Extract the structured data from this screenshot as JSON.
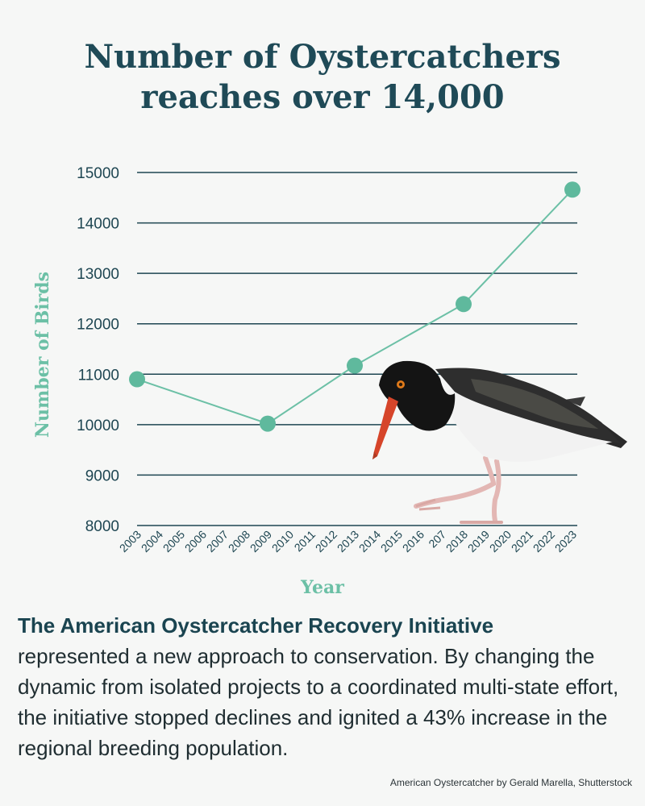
{
  "title_line1": "Number of Oystercatchers",
  "title_line2": "reaches over 14,000",
  "chart_data": {
    "type": "line",
    "ylabel": "Number of Birds",
    "xlabel": "Year",
    "ylim": [
      8000,
      15000
    ],
    "yticks": [
      8000,
      9000,
      10000,
      11000,
      12000,
      13000,
      14000,
      15000
    ],
    "x_tick_labels": [
      "2003",
      "2004",
      "2005",
      "2006",
      "2007",
      "2008",
      "2009",
      "2010",
      "2011",
      "2012",
      "2013",
      "2014",
      "2015",
      "2016",
      "207",
      "2018",
      "2019",
      "2020",
      "2021",
      "2022",
      "2023"
    ],
    "points": [
      {
        "x": "2003",
        "y": 10900
      },
      {
        "x": "2009",
        "y": 10020
      },
      {
        "x": "2013",
        "y": 11170
      },
      {
        "x": "2018",
        "y": 12390
      },
      {
        "x": "2023",
        "y": 14660
      }
    ],
    "grid": true,
    "colors": {
      "line": "#6cc0a6",
      "marker": "#5fb99d",
      "grid": "#1e4652"
    }
  },
  "body": {
    "lead": "The American Oystercatcher Recovery Initiative",
    "text": "represented a new approach to conservation. By changing the dynamic from isolated projects to a coordinated multi-state effort, the initiative stopped declines and ignited a 43% increase in the regional breeding population."
  },
  "credit": "American Oystercatcher by Gerald Marella, Shutterstock",
  "image": {
    "subject": "American Oystercatcher bird photo",
    "icon": "oystercatcher-illustration"
  }
}
